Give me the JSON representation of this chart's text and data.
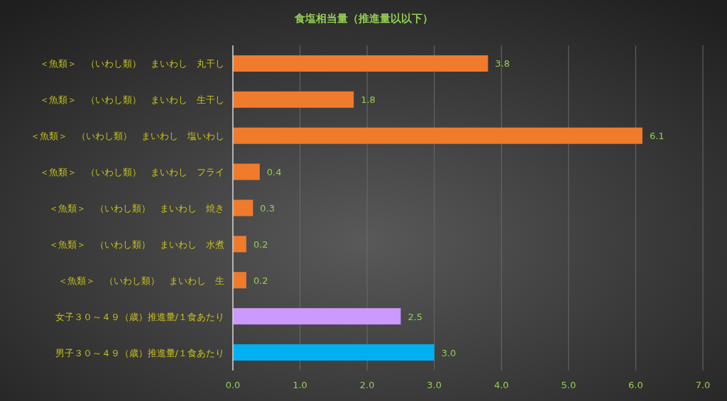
{
  "chart_data": {
    "type": "bar",
    "orientation": "horizontal",
    "title": "食塩相当量（推進量以以下）",
    "categories": [
      "＜魚類＞　（いわし類）　まいわし　丸干し",
      "＜魚類＞　（いわし類）　まいわし　生干し",
      "＜魚類＞　（いわし類）　まいわし　塩いわし",
      "＜魚類＞　（いわし類）　まいわし　フライ",
      "＜魚類＞　（いわし類）　まいわし　焼き",
      "＜魚類＞　（いわし類）　まいわし　水煮",
      "＜魚類＞　（いわし類）　まいわし　生",
      "女子３０～４９（歳）推進量/１食あたり",
      "男子３０～４９（歳）推進量/１食あたり"
    ],
    "values": [
      3.8,
      1.8,
      6.1,
      0.4,
      0.3,
      0.2,
      0.2,
      2.5,
      3.0
    ],
    "value_labels": [
      "3.8",
      "1.8",
      "6.1",
      "0.4",
      "0.3",
      "0.2",
      "0.2",
      "2.5",
      "3.0"
    ],
    "colors": [
      "#f07b2c",
      "#f07b2c",
      "#f07b2c",
      "#f07b2c",
      "#f07b2c",
      "#f07b2c",
      "#f07b2c",
      "#cc99ff",
      "#00b0f0"
    ],
    "xlim": [
      0,
      7
    ],
    "xticks": [
      {
        "value": 0,
        "label": "0.0"
      },
      {
        "value": 1,
        "label": "1.0"
      },
      {
        "value": 2,
        "label": "2.0"
      },
      {
        "value": 3,
        "label": "3.0"
      },
      {
        "value": 4,
        "label": "4.0"
      },
      {
        "value": 5,
        "label": "5.0"
      },
      {
        "value": 6,
        "label": "6.0"
      },
      {
        "value": 7,
        "label": "7.0"
      }
    ],
    "grid": "x"
  }
}
